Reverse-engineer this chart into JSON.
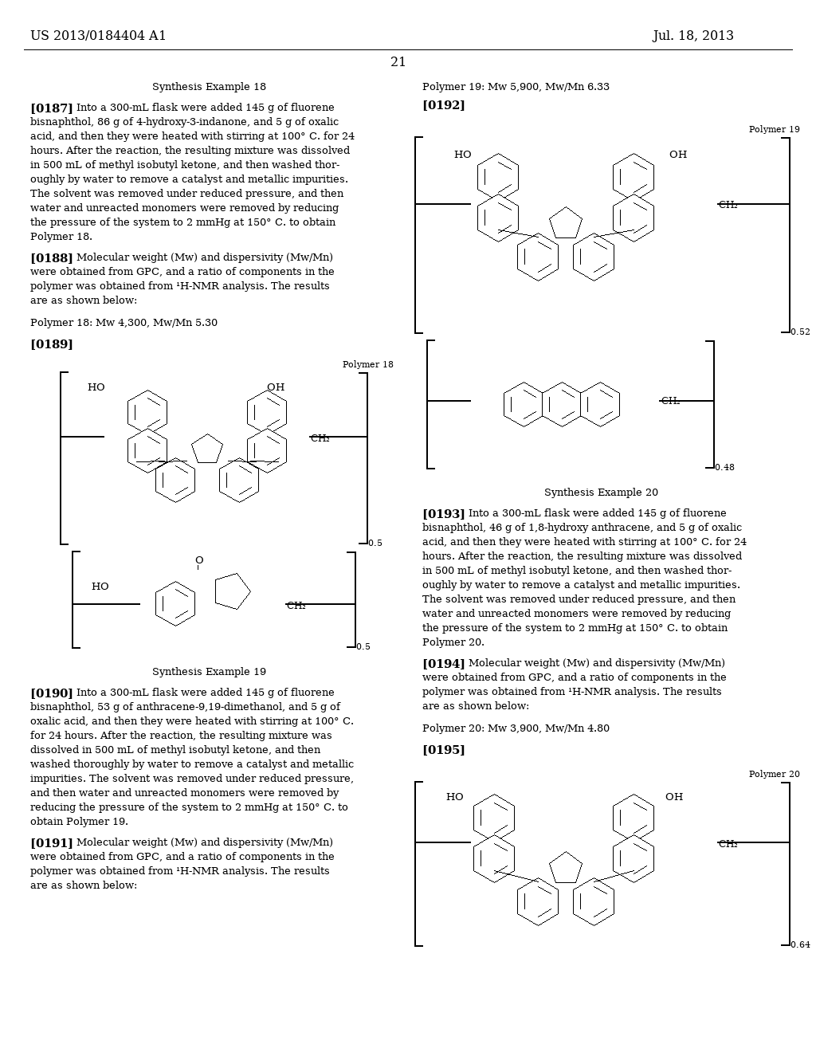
{
  "background_color": "#ffffff",
  "header_left": "US 2013/0184404 A1",
  "header_right": "Jul. 18, 2013",
  "page_number": "21"
}
